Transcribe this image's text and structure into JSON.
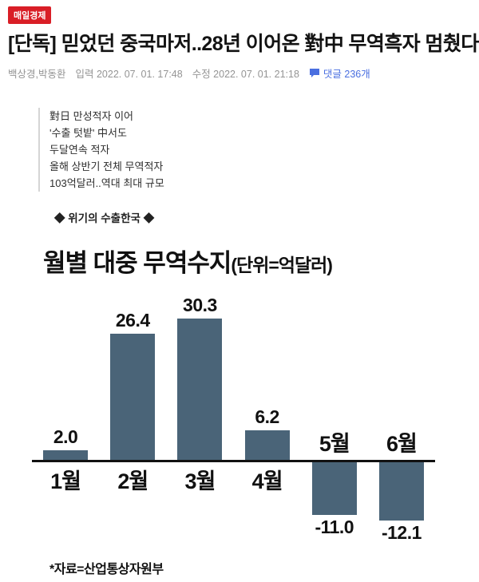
{
  "logo": {
    "text": "매일경제",
    "bg_color": "#d91e26"
  },
  "headline": "[단독] 믿었던 중국마저..28년 이어온 對中 무역흑자 멈췄다",
  "byline": {
    "authors": "백상경,박동환",
    "input_label": "입력 2022. 07. 01. 17:48",
    "updated_label": "수정 2022. 07. 01. 21:18",
    "comments_label": "댓글 236개",
    "comment_color": "#4a6fe0"
  },
  "summary_box": {
    "lines": [
      "對日 만성적자 이어",
      "'수출 텃밭' 中서도",
      "두달연속 적자",
      "올해 상반기 전체 무역적자",
      "103억달러..역대 최대 규모"
    ]
  },
  "section_marker": "◆ 위기의 수출한국 ◆",
  "chart_data": {
    "type": "bar",
    "title": "월별 대중 무역수지",
    "unit_label": "(단위=억달러)",
    "categories": [
      "1월",
      "2월",
      "3월",
      "4월",
      "5월",
      "6월"
    ],
    "values": [
      2.0,
      26.4,
      30.3,
      6.2,
      -11.0,
      -12.1
    ],
    "ylim": [
      -13,
      32
    ],
    "bar_color": "#4a6478",
    "baseline_color": "#111111",
    "grid": false,
    "legend": "none",
    "source": "*자료=산업통상자원부",
    "xlabel": "",
    "ylabel": ""
  }
}
